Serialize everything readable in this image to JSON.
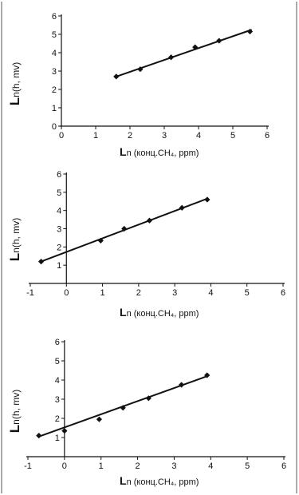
{
  "chart_data": [
    {
      "type": "scatter",
      "ylabel_big": "L",
      "ylabel_small": "n(h, mv)",
      "xlabel_big": "L",
      "xlabel_small": "n (конц.CH₄, ppm)",
      "xlim": [
        0,
        6
      ],
      "ylim": [
        0,
        6
      ],
      "xticks": [
        "0",
        "1",
        "2",
        "3",
        "4",
        "5",
        "6"
      ],
      "yticks": [
        "0",
        "1",
        "2",
        "3",
        "4",
        "5",
        "6"
      ],
      "points": [
        [
          1.6,
          2.7
        ],
        [
          2.3,
          3.1
        ],
        [
          3.2,
          3.75
        ],
        [
          3.9,
          4.3
        ],
        [
          4.6,
          4.65
        ],
        [
          5.5,
          5.15
        ]
      ],
      "fit": {
        "x": [
          1.6,
          5.55
        ],
        "y": [
          2.7,
          5.25
        ]
      },
      "grid": false
    },
    {
      "type": "scatter",
      "ylabel_big": "L",
      "ylabel_small": "n(h, mv)",
      "xlabel_big": "L",
      "xlabel_small": "n (конц.CH₄, ppm)",
      "xlim": [
        -1,
        6
      ],
      "ylim": [
        0,
        6
      ],
      "xticks": [
        "-1",
        "0",
        "1",
        "2",
        "3",
        "4",
        "5",
        "6"
      ],
      "yticks": [
        "1",
        "2",
        "3",
        "4",
        "5",
        "6"
      ],
      "points": [
        [
          -0.7,
          1.2
        ],
        [
          0.95,
          2.35
        ],
        [
          1.6,
          3.0
        ],
        [
          2.3,
          3.45
        ],
        [
          3.2,
          4.15
        ],
        [
          3.9,
          4.6
        ]
      ],
      "fit": {
        "x": [
          -0.7,
          3.9
        ],
        "y": [
          1.2,
          4.65
        ]
      },
      "grid": false
    },
    {
      "type": "scatter",
      "ylabel_big": "L",
      "ylabel_small": "n(h, mv)",
      "xlabel_big": "L",
      "xlabel_small": "n (конц.CH₄, ppm)",
      "xlim": [
        -1,
        6
      ],
      "ylim": [
        0,
        6
      ],
      "xticks": [
        "-1",
        "0",
        "1",
        "2",
        "3",
        "4",
        "5",
        "6"
      ],
      "yticks": [
        "1",
        "2",
        "3",
        "4",
        "5",
        "6"
      ],
      "points": [
        [
          -0.7,
          1.1
        ],
        [
          0.0,
          1.35
        ],
        [
          0.95,
          1.95
        ],
        [
          1.6,
          2.55
        ],
        [
          2.3,
          3.05
        ],
        [
          3.2,
          3.75
        ],
        [
          3.9,
          4.25
        ]
      ],
      "fit": {
        "x": [
          -0.7,
          3.9
        ],
        "y": [
          1.05,
          4.2
        ]
      },
      "grid": false
    }
  ]
}
